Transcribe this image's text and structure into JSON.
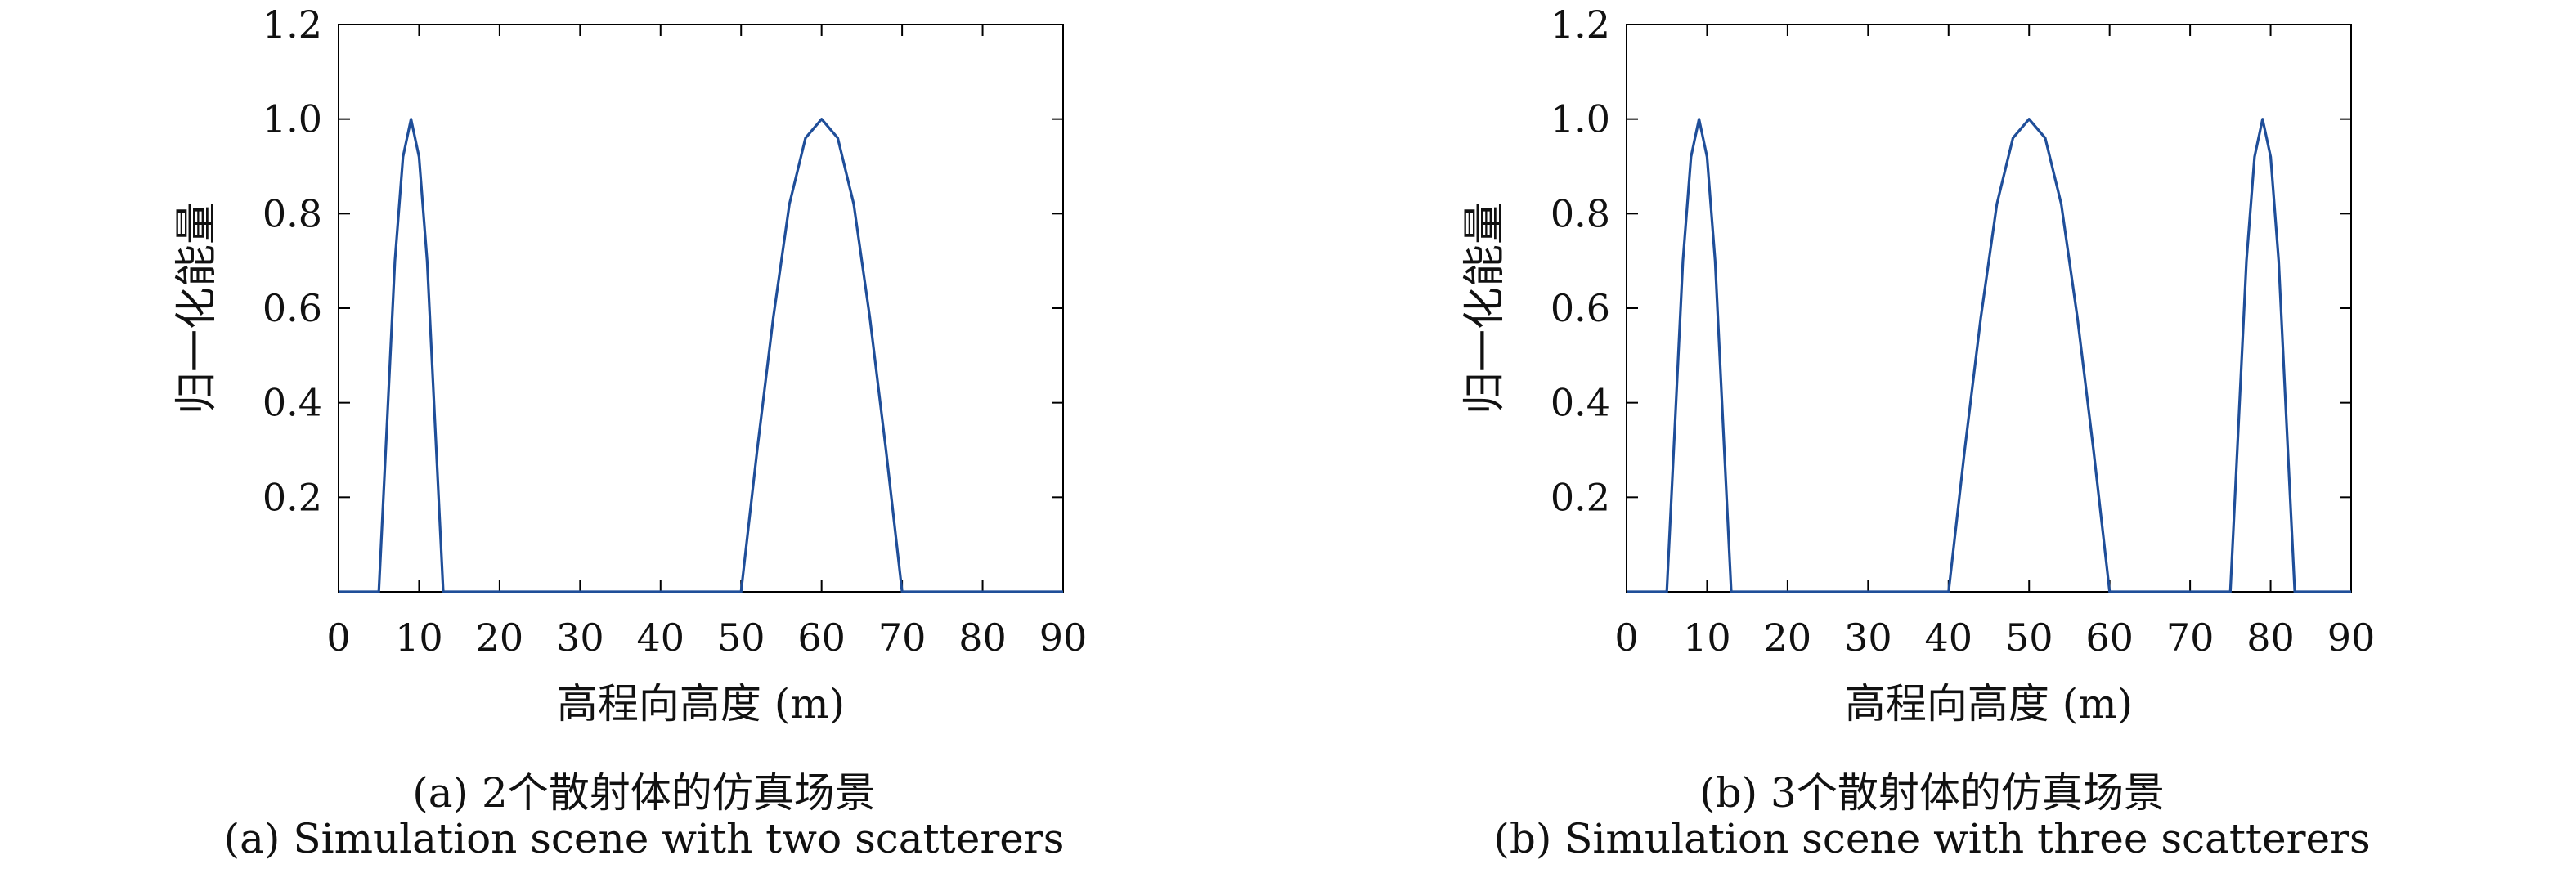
{
  "chart_data": [
    {
      "type": "line",
      "xlabel": "高程向高度 (m)",
      "ylabel": "归一化能量",
      "xlim": [
        0,
        90
      ],
      "ylim": [
        0,
        1.2
      ],
      "xticks": [
        0,
        10,
        20,
        30,
        40,
        50,
        60,
        70,
        80,
        90
      ],
      "yticks": [
        0.2,
        0.4,
        0.6,
        0.8,
        1.0,
        1.2
      ],
      "xtick_labels": [
        "0",
        "10",
        "20",
        "30",
        "40",
        "50",
        "60",
        "70",
        "80",
        "90"
      ],
      "ytick_labels": [
        "0.2",
        "0.4",
        "0.6",
        "0.8",
        "1.0",
        "1.2"
      ],
      "grid": false,
      "color": "#1f4e99",
      "series": [
        {
          "x": [
            0,
            5,
            6,
            7,
            8,
            9,
            10,
            11,
            12,
            13,
            14,
            20,
            30,
            40,
            49,
            50,
            52,
            54,
            56,
            58,
            60,
            62,
            64,
            66,
            68,
            70,
            71,
            80,
            90
          ],
          "y": [
            0,
            0,
            0.35,
            0.7,
            0.92,
            1.0,
            0.92,
            0.7,
            0.35,
            0,
            0,
            0,
            0,
            0,
            0,
            0,
            0.3,
            0.58,
            0.82,
            0.96,
            1.0,
            0.96,
            0.82,
            0.58,
            0.3,
            0,
            0,
            0,
            0
          ]
        }
      ],
      "caption_cn": "(a) 2个散射体的仿真场景",
      "caption_en": "(a) Simulation scene with two scatterers"
    },
    {
      "type": "line",
      "xlabel": "高程向高度 (m)",
      "ylabel": "归一化能量",
      "xlim": [
        0,
        90
      ],
      "ylim": [
        0,
        1.2
      ],
      "xticks": [
        0,
        10,
        20,
        30,
        40,
        50,
        60,
        70,
        80,
        90
      ],
      "yticks": [
        0.2,
        0.4,
        0.6,
        0.8,
        1.0,
        1.2
      ],
      "xtick_labels": [
        "0",
        "10",
        "20",
        "30",
        "40",
        "50",
        "60",
        "70",
        "80",
        "90"
      ],
      "ytick_labels": [
        "0.2",
        "0.4",
        "0.6",
        "0.8",
        "1.0",
        "1.2"
      ],
      "grid": false,
      "color": "#1f4e99",
      "series": [
        {
          "x": [
            0,
            5,
            6,
            7,
            8,
            9,
            10,
            11,
            12,
            13,
            14,
            20,
            30,
            39,
            40,
            42,
            44,
            46,
            48,
            50,
            52,
            54,
            56,
            58,
            60,
            61,
            70,
            75,
            76,
            77,
            78,
            79,
            80,
            81,
            82,
            83,
            84,
            90
          ],
          "y": [
            0,
            0,
            0.35,
            0.7,
            0.92,
            1.0,
            0.92,
            0.7,
            0.35,
            0,
            0,
            0,
            0,
            0,
            0,
            0.3,
            0.58,
            0.82,
            0.96,
            1.0,
            0.96,
            0.82,
            0.58,
            0.3,
            0,
            0,
            0,
            0,
            0.35,
            0.7,
            0.92,
            1.0,
            0.92,
            0.7,
            0.35,
            0,
            0,
            0
          ]
        }
      ],
      "caption_cn": "(b) 3个散射体的仿真场景",
      "caption_en": "(b) Simulation scene with three scatterers"
    }
  ]
}
